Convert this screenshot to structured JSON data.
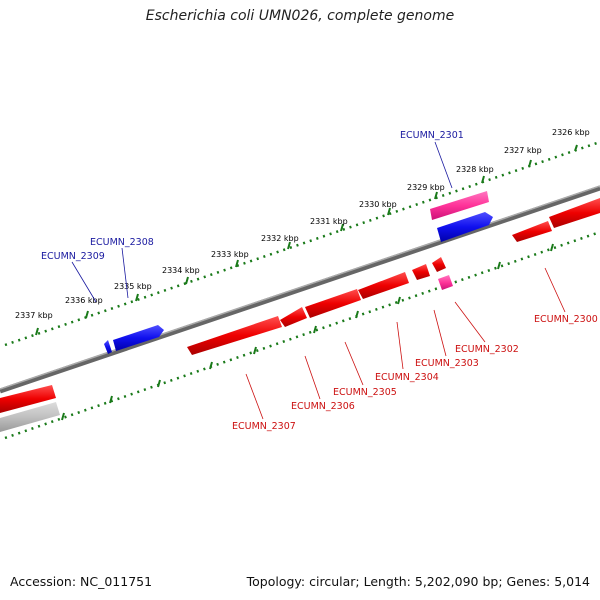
{
  "title": "Escherichia coli UMN026, complete genome",
  "footer": {
    "accession": "Accession: NC_011751",
    "summary": "Topology: circular; Length: 5,202,090 bp; Genes: 5,014"
  },
  "colors": {
    "forward_gene": "#2020e0",
    "reverse_gene": "#e01010",
    "rna_gene": "#ff3399",
    "pseudo": "#bbbbbb",
    "axis": "#777777",
    "tick": "#1a7a1a",
    "forward_label": "#1a1aa0",
    "reverse_label": "#cc1111"
  },
  "scale_labels": [
    "2326 kbp",
    "2327 kbp",
    "2328 kbp",
    "2329 kbp",
    "2330 kbp",
    "2331 kbp",
    "2332 kbp",
    "2333 kbp",
    "2334 kbp",
    "2335 kbp",
    "2336 kbp",
    "2337 kbp"
  ],
  "forward_labels": [
    "ECUMN_2301",
    "ECUMN_2308",
    "ECUMN_2309"
  ],
  "reverse_labels": [
    "ECUMN_2300",
    "ECUMN_2302",
    "ECUMN_2303",
    "ECUMN_2304",
    "ECUMN_2305",
    "ECUMN_2306",
    "ECUMN_2307"
  ]
}
